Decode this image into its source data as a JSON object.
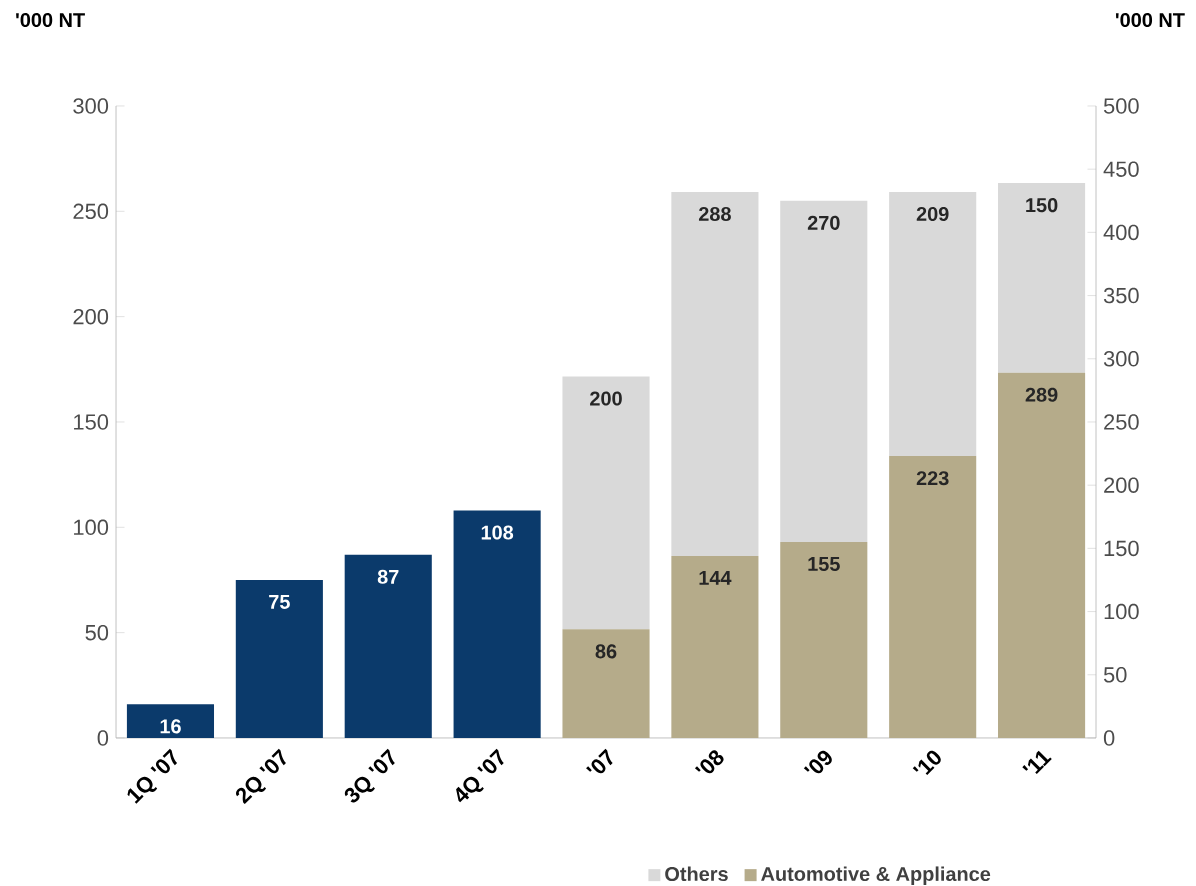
{
  "chart_data": {
    "type": "bar",
    "categories": [
      "1Q '07",
      "2Q '07",
      "3Q '07",
      "4Q '07",
      "'07",
      "'08",
      "'09",
      "'10",
      "'11"
    ],
    "ylabel": "'000 NT",
    "y2label": "'000 NT",
    "ylim": [
      0,
      300
    ],
    "yticks": [
      0,
      50,
      100,
      150,
      200,
      250,
      300
    ],
    "y2lim": [
      0,
      500
    ],
    "y2ticks": [
      0,
      50,
      100,
      150,
      200,
      250,
      300,
      350,
      400,
      450,
      500
    ],
    "stacked": true,
    "data_labels": true,
    "legend": "bottom",
    "series": [
      {
        "color": "#0b3a6b",
        "values": [
          16,
          75,
          87,
          108,
          null,
          null,
          null,
          null,
          null
        ]
      },
      {
        "name": "Automotive & Appliance",
        "color": "#b5ab8a",
        "axis": "y2",
        "values": [
          null,
          null,
          null,
          null,
          86,
          144,
          155,
          223,
          289
        ]
      },
      {
        "name": "Others",
        "color": "#d9d9d9",
        "axis": "y2",
        "values": [
          null,
          null,
          null,
          null,
          200,
          288,
          270,
          209,
          150
        ]
      }
    ]
  }
}
